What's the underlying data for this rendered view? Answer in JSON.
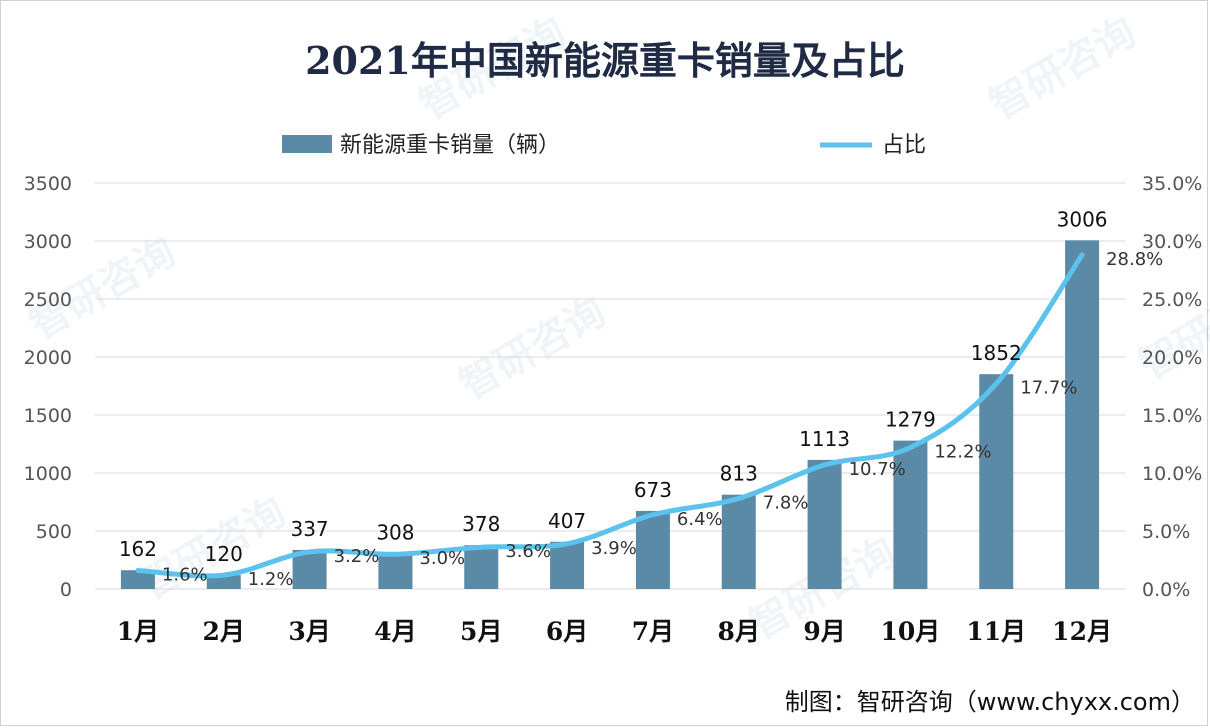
{
  "chart_data": {
    "type": "bar",
    "title": "2021年中国新能源重卡销量及占比",
    "categories": [
      "1月",
      "2月",
      "3月",
      "4月",
      "5月",
      "6月",
      "7月",
      "8月",
      "9月",
      "10月",
      "11月",
      "12月"
    ],
    "series": [
      {
        "name": "新能源重卡销量（辆）",
        "type": "bar",
        "axis": "left",
        "values": [
          162,
          120,
          337,
          308,
          378,
          407,
          673,
          813,
          1113,
          1279,
          1852,
          3006
        ],
        "labels": [
          "162",
          "120",
          "337",
          "308",
          "378",
          "407",
          "673",
          "813",
          "1113",
          "1279",
          "1852",
          "3006"
        ]
      },
      {
        "name": "占比",
        "type": "line",
        "axis": "right",
        "values": [
          1.6,
          1.2,
          3.2,
          3.0,
          3.6,
          3.9,
          6.4,
          7.8,
          10.7,
          12.2,
          17.7,
          28.8
        ],
        "labels": [
          "1.6%",
          "1.2%",
          "3.2%",
          "3.0%",
          "3.6%",
          "3.9%",
          "6.4%",
          "7.8%",
          "10.7%",
          "12.2%",
          "17.7%",
          "28.8%"
        ]
      }
    ],
    "y_left": {
      "min": 0,
      "max": 3500,
      "ticks": [
        "0",
        "500",
        "1000",
        "1500",
        "2000",
        "2500",
        "3000",
        "3500"
      ]
    },
    "y_right": {
      "min": 0,
      "max": 35,
      "ticks": [
        "0.0%",
        "5.0%",
        "10.0%",
        "15.0%",
        "20.0%",
        "25.0%",
        "30.0%",
        "35.0%"
      ]
    },
    "grid": true,
    "legend_position": "top",
    "colors": {
      "bar": "#5b8aa6",
      "line": "#5bc2ee",
      "grid": "#d9d9d9"
    }
  },
  "source": "制图：智研咨询（www.chyxx.com）",
  "watermark": "智研咨询"
}
